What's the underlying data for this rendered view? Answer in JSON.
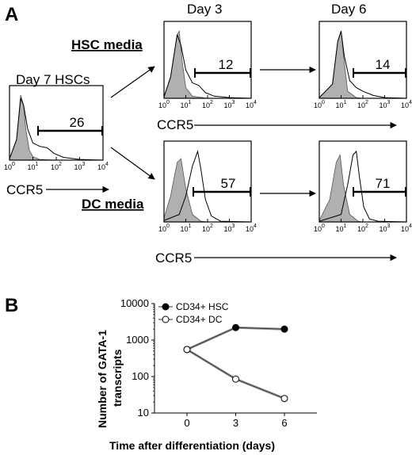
{
  "panel_a": {
    "label": "A",
    "marker": "CCR5",
    "day_label_3": "Day 3",
    "day_label_6": "Day 6",
    "hsc_media_label": "HSC media",
    "dc_media_label": "DC media",
    "tick_labels": [
      "10",
      "10",
      "10",
      "10",
      "10"
    ],
    "tick_exponents": [
      "0",
      "1",
      "2",
      "3",
      "4"
    ]
  },
  "chart_data": [
    {
      "type": "histogram",
      "name_label": "Day 7 HSCs",
      "xlabel": "CCR5",
      "x_scale": "log",
      "xlim": [
        1,
        10000
      ],
      "gate_percent": "26",
      "control": [
        [
          1,
          0.02
        ],
        [
          2,
          0.3
        ],
        [
          3,
          0.95
        ],
        [
          4,
          0.8
        ],
        [
          5,
          0.45
        ],
        [
          7,
          0.15
        ],
        [
          10,
          0.05
        ],
        [
          20,
          0.01
        ],
        [
          100,
          0
        ]
      ],
      "sample": [
        [
          1,
          0.02
        ],
        [
          2,
          0.3
        ],
        [
          3,
          0.9
        ],
        [
          4,
          0.8
        ],
        [
          6,
          0.45
        ],
        [
          10,
          0.25
        ],
        [
          20,
          0.2
        ],
        [
          40,
          0.18
        ],
        [
          80,
          0.1
        ],
        [
          200,
          0.04
        ],
        [
          1000,
          0.01
        ],
        [
          10000,
          0
        ]
      ]
    },
    {
      "type": "histogram",
      "condition": "HSC media",
      "day": "Day 3",
      "x_scale": "log",
      "xlim": [
        1,
        10000
      ],
      "gate_percent": "12",
      "control": [
        [
          1,
          0.02
        ],
        [
          2,
          0.3
        ],
        [
          4,
          0.9
        ],
        [
          5,
          0.95
        ],
        [
          7,
          0.5
        ],
        [
          10,
          0.15
        ],
        [
          20,
          0.03
        ],
        [
          100,
          0
        ]
      ],
      "sample": [
        [
          1,
          0.02
        ],
        [
          2,
          0.3
        ],
        [
          4,
          0.9
        ],
        [
          6,
          0.75
        ],
        [
          10,
          0.4
        ],
        [
          20,
          0.22
        ],
        [
          40,
          0.18
        ],
        [
          80,
          0.08
        ],
        [
          200,
          0.03
        ],
        [
          1000,
          0.01
        ],
        [
          10000,
          0
        ]
      ]
    },
    {
      "type": "histogram",
      "condition": "HSC media",
      "day": "Day 6",
      "x_scale": "log",
      "xlim": [
        1,
        10000
      ],
      "gate_percent": "14",
      "control": [
        [
          1,
          0.01
        ],
        [
          4,
          0.2
        ],
        [
          7,
          0.8
        ],
        [
          10,
          0.95
        ],
        [
          13,
          0.6
        ],
        [
          20,
          0.1
        ],
        [
          50,
          0.01
        ],
        [
          100,
          0
        ]
      ],
      "sample": [
        [
          1,
          0.01
        ],
        [
          4,
          0.2
        ],
        [
          7,
          0.8
        ],
        [
          10,
          0.95
        ],
        [
          14,
          0.6
        ],
        [
          25,
          0.25
        ],
        [
          50,
          0.15
        ],
        [
          100,
          0.1
        ],
        [
          300,
          0.04
        ],
        [
          1000,
          0.01
        ],
        [
          10000,
          0
        ]
      ]
    },
    {
      "type": "histogram",
      "condition": "DC media",
      "day": "Day 3",
      "x_scale": "log",
      "xlim": [
        1,
        10000
      ],
      "gate_percent": "57",
      "control": [
        [
          1,
          0.05
        ],
        [
          2,
          0.35
        ],
        [
          4,
          0.8
        ],
        [
          6,
          0.85
        ],
        [
          10,
          0.45
        ],
        [
          20,
          0.1
        ],
        [
          50,
          0.01
        ],
        [
          100,
          0
        ]
      ],
      "sample": [
        [
          1,
          0.02
        ],
        [
          5,
          0.1
        ],
        [
          10,
          0.35
        ],
        [
          20,
          0.75
        ],
        [
          35,
          0.95
        ],
        [
          50,
          0.7
        ],
        [
          80,
          0.3
        ],
        [
          150,
          0.08
        ],
        [
          400,
          0.01
        ],
        [
          10000,
          0
        ]
      ]
    },
    {
      "type": "histogram",
      "condition": "DC media",
      "day": "Day 6",
      "x_scale": "log",
      "xlim": [
        1,
        10000
      ],
      "gate_percent": "71",
      "control": [
        [
          1,
          0.02
        ],
        [
          3,
          0.3
        ],
        [
          6,
          0.8
        ],
        [
          9,
          0.9
        ],
        [
          13,
          0.5
        ],
        [
          25,
          0.1
        ],
        [
          60,
          0.01
        ],
        [
          100,
          0
        ]
      ],
      "sample": [
        [
          1,
          0.01
        ],
        [
          10,
          0.1
        ],
        [
          20,
          0.5
        ],
        [
          35,
          0.9
        ],
        [
          50,
          0.95
        ],
        [
          70,
          0.6
        ],
        [
          110,
          0.2
        ],
        [
          200,
          0.04
        ],
        [
          500,
          0.01
        ],
        [
          10000,
          0
        ]
      ]
    },
    {
      "type": "line",
      "panel_label": "B",
      "xlabel": "Time after differentiation (days)",
      "ylabel_line1": "Number of GATA-1",
      "ylabel_line2": "transcripts",
      "y_scale": "log",
      "ylim": [
        10,
        10000
      ],
      "xlim": [
        -2,
        8
      ],
      "x_ticks": [
        "0",
        "3",
        "6"
      ],
      "y_ticks": [
        "10000",
        "1000",
        "100",
        "10"
      ],
      "legend_position": "top-left",
      "series": [
        {
          "name": "CD34+ HSC",
          "marker": "filled-circle",
          "x": [
            0,
            3,
            6
          ],
          "y": [
            550,
            2200,
            2000
          ]
        },
        {
          "name": "CD34+ DC",
          "marker": "open-circle",
          "x": [
            0,
            3,
            6
          ],
          "y": [
            550,
            85,
            25
          ]
        }
      ]
    }
  ]
}
